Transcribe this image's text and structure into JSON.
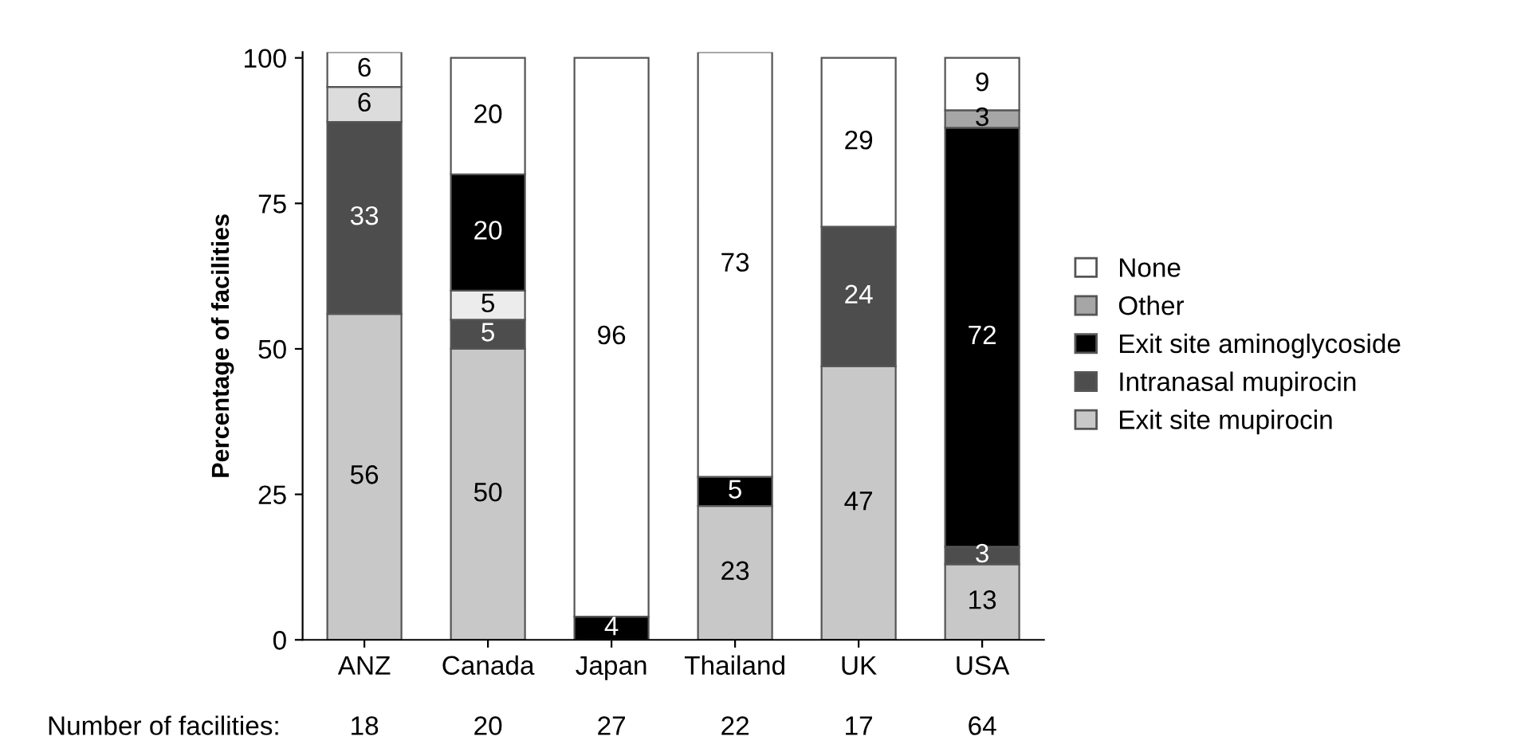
{
  "chart_data": {
    "type": "bar",
    "stacked": true,
    "ylabel": "Percentage of facilities",
    "categories": [
      "ANZ",
      "Canada",
      "Japan",
      "Thailand",
      "UK",
      "USA"
    ],
    "series": [
      {
        "name": "Exit site mupirocin",
        "color": "#c8c8c8",
        "values": [
          56,
          50,
          null,
          23,
          47,
          13
        ]
      },
      {
        "name": "Intranasal mupirocin",
        "color": "#4d4d4d",
        "values": [
          33,
          5,
          null,
          null,
          24,
          3
        ]
      },
      {
        "color": "#ececec",
        "values": [
          null,
          5,
          null,
          null,
          null,
          null
        ]
      },
      {
        "name": "Exit site aminoglycoside",
        "color": "#000000",
        "values": [
          null,
          20,
          4,
          5,
          null,
          72
        ]
      },
      {
        "color": "#dcdcdc",
        "values": [
          6,
          null,
          null,
          null,
          null,
          null
        ]
      },
      {
        "name": "Other",
        "color": "#a6a6a6",
        "values": [
          null,
          null,
          null,
          null,
          null,
          3
        ]
      },
      {
        "name": "None",
        "color": "#ffffff",
        "values": [
          6,
          20,
          96,
          73,
          29,
          9
        ]
      }
    ],
    "ylim": [
      0,
      101
    ],
    "yticks": [
      0,
      25,
      50,
      75,
      100
    ],
    "grid": false,
    "legend": "right",
    "data_labels": true,
    "annotations": [
      "Number of facilities:",
      "18",
      "20",
      "27",
      "22",
      "17",
      "64"
    ]
  }
}
